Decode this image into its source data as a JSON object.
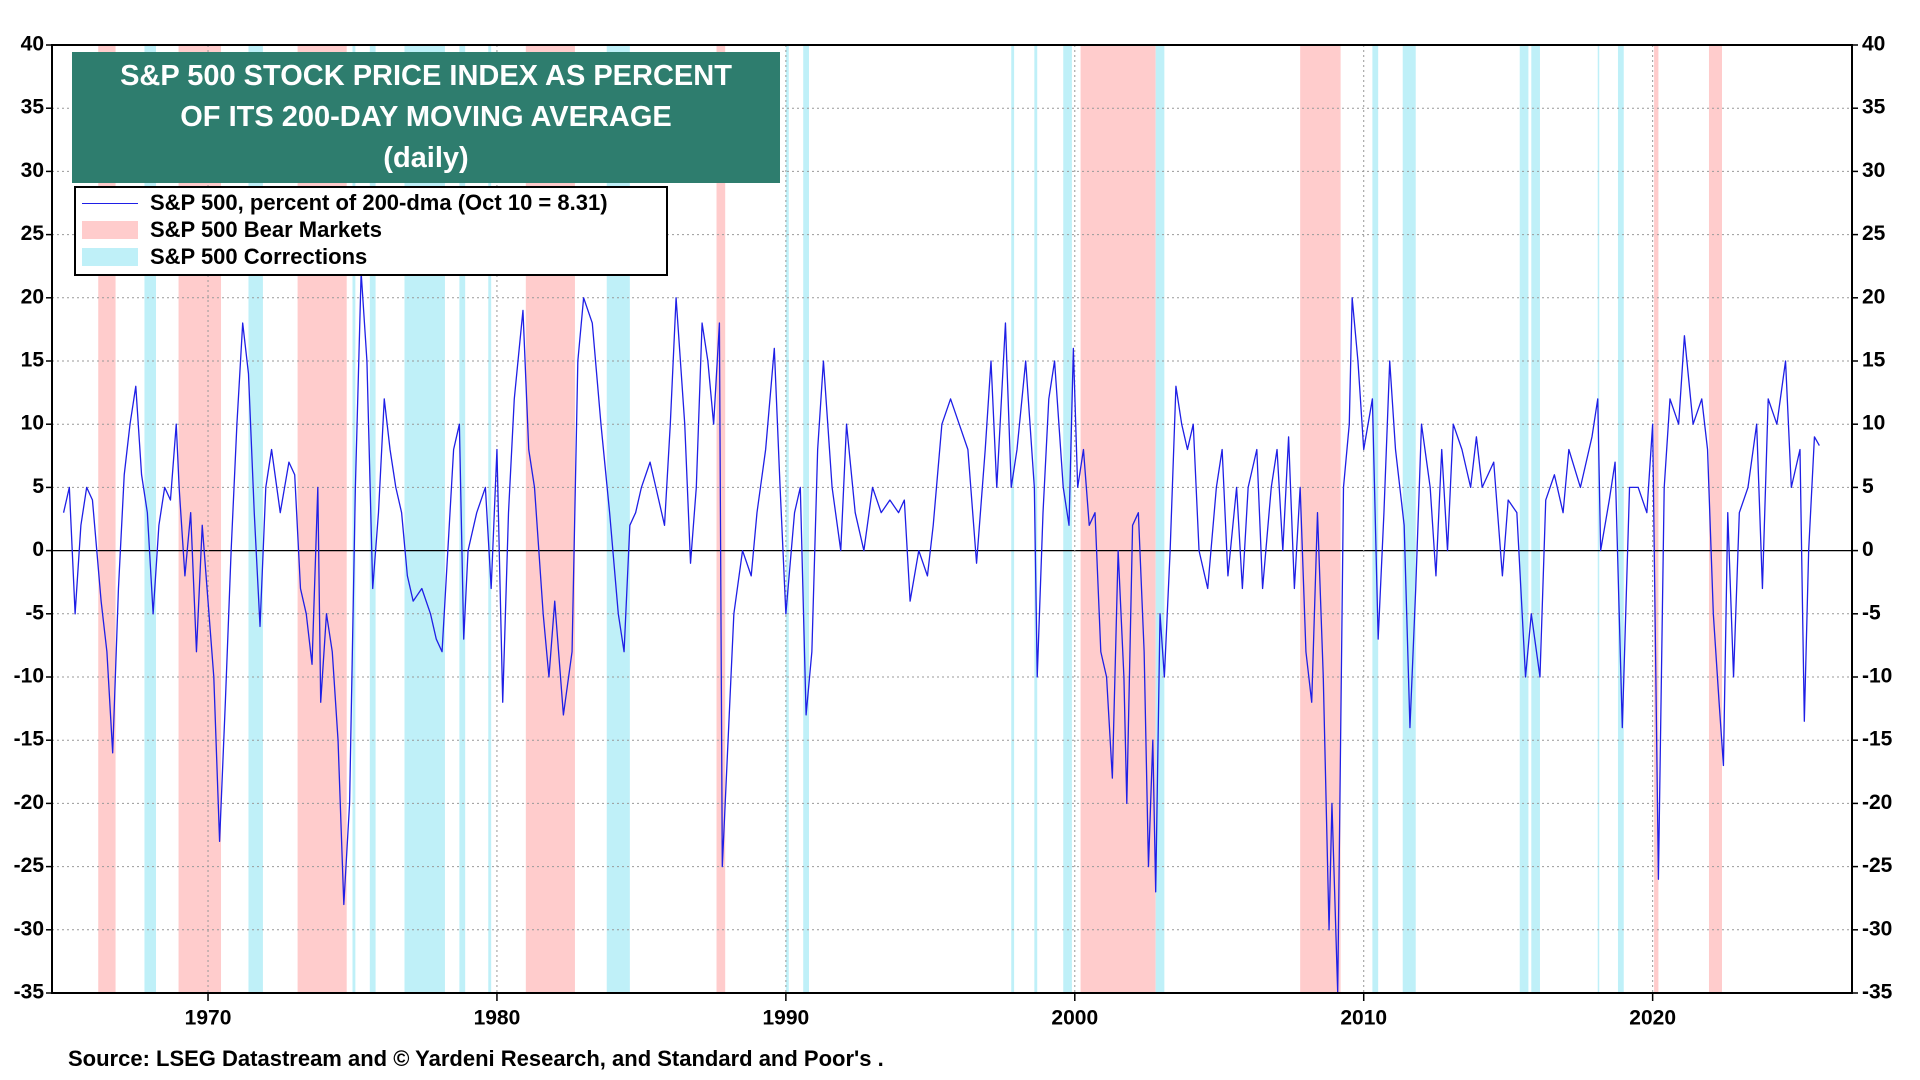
{
  "chart_data": {
    "type": "line",
    "title": "S&P 500 STOCK PRICE INDEX AS PERCENT OF ITS 200-DAY MOVING AVERAGE",
    "subtitle": "(daily)",
    "source": "Source: LSEG Datastream and © Yardeni Research, and Standard and Poor's .",
    "xlim": [
      1964.6,
      2026.9
    ],
    "xticks": [
      1970,
      1980,
      1990,
      2000,
      2010,
      2020
    ],
    "ylim": [
      -35,
      40
    ],
    "yticks": [
      -35,
      -30,
      -25,
      -20,
      -15,
      -10,
      -5,
      0,
      5,
      10,
      15,
      20,
      25,
      30,
      35,
      40
    ],
    "y2lim": [
      -35,
      40
    ],
    "y2ticks": [
      -35,
      -30,
      -25,
      -20,
      -15,
      -10,
      -5,
      0,
      5,
      10,
      15,
      20,
      25,
      30,
      35,
      40
    ],
    "grid": true,
    "legend": "top-left",
    "bands": [
      {
        "name": "S&P 500 Bear Markets",
        "color": "#ffcccc",
        "ranges": [
          [
            1966.2,
            1966.8
          ],
          [
            1968.98,
            1970.45
          ],
          [
            1973.1,
            1974.8
          ],
          [
            1981.0,
            1982.7
          ],
          [
            1987.6,
            1987.9
          ],
          [
            2000.2,
            2002.8
          ],
          [
            2007.8,
            2009.2
          ],
          [
            2020.05,
            2020.2
          ],
          [
            2021.95,
            2022.4
          ]
        ]
      },
      {
        "name": "S&P 500 Corrections",
        "color": "#bff0f8",
        "ranges": [
          [
            1967.8,
            1968.2
          ],
          [
            1971.4,
            1971.9
          ],
          [
            1975.0,
            1975.1
          ],
          [
            1975.6,
            1975.8
          ],
          [
            1976.8,
            1978.2
          ],
          [
            1978.7,
            1978.9
          ],
          [
            1979.7,
            1979.8
          ],
          [
            1983.8,
            1984.6
          ],
          [
            1990.0,
            1990.1
          ],
          [
            1990.6,
            1990.8
          ],
          [
            1997.8,
            1997.9
          ],
          [
            1998.6,
            1998.7
          ],
          [
            1999.6,
            1999.9
          ],
          [
            2002.8,
            2003.1
          ],
          [
            2010.3,
            2010.5
          ],
          [
            2011.35,
            2011.8
          ],
          [
            2015.4,
            2015.7
          ],
          [
            2015.8,
            2016.1
          ],
          [
            2018.1,
            2018.15
          ],
          [
            2018.8,
            2019.0
          ]
        ]
      }
    ],
    "x": [
      1965.0,
      1965.2,
      1965.4,
      1965.6,
      1965.8,
      1966.0,
      1966.3,
      1966.5,
      1966.7,
      1966.9,
      1967.1,
      1967.3,
      1967.5,
      1967.7,
      1967.9,
      1968.1,
      1968.3,
      1968.5,
      1968.7,
      1968.9,
      1969.0,
      1969.2,
      1969.4,
      1969.6,
      1969.8,
      1970.0,
      1970.2,
      1970.4,
      1970.6,
      1970.8,
      1971.0,
      1971.2,
      1971.4,
      1971.6,
      1971.8,
      1972.0,
      1972.2,
      1972.5,
      1972.8,
      1973.0,
      1973.2,
      1973.4,
      1973.6,
      1973.8,
      1973.9,
      1974.1,
      1974.3,
      1974.5,
      1974.7,
      1974.9,
      1975.1,
      1975.3,
      1975.5,
      1975.7,
      1975.9,
      1976.1,
      1976.3,
      1976.5,
      1976.7,
      1976.9,
      1977.1,
      1977.4,
      1977.7,
      1977.9,
      1978.1,
      1978.3,
      1978.5,
      1978.7,
      1978.85,
      1979.0,
      1979.3,
      1979.6,
      1979.8,
      1980.0,
      1980.2,
      1980.4,
      1980.6,
      1980.9,
      1981.1,
      1981.3,
      1981.6,
      1981.8,
      1982.0,
      1982.3,
      1982.6,
      1982.8,
      1983.0,
      1983.3,
      1983.6,
      1983.9,
      1984.2,
      1984.4,
      1984.6,
      1984.8,
      1985.0,
      1985.3,
      1985.6,
      1985.8,
      1986.0,
      1986.2,
      1986.5,
      1986.7,
      1986.9,
      1987.1,
      1987.3,
      1987.5,
      1987.7,
      1987.8,
      1988.0,
      1988.2,
      1988.5,
      1988.8,
      1989.0,
      1989.3,
      1989.6,
      1989.8,
      1990.0,
      1990.3,
      1990.5,
      1990.7,
      1990.9,
      1991.1,
      1991.3,
      1991.6,
      1991.9,
      1992.1,
      1992.4,
      1992.7,
      1993.0,
      1993.3,
      1993.6,
      1993.9,
      1994.1,
      1994.3,
      1994.6,
      1994.9,
      1995.1,
      1995.4,
      1995.7,
      1996.0,
      1996.3,
      1996.6,
      1996.9,
      1997.1,
      1997.3,
      1997.6,
      1997.8,
      1998.0,
      1998.3,
      1998.6,
      1998.7,
      1998.9,
      1999.1,
      1999.3,
      1999.6,
      1999.8,
      1999.95,
      2000.1,
      2000.3,
      2000.5,
      2000.7,
      2000.9,
      2001.1,
      2001.3,
      2001.5,
      2001.7,
      2001.8,
      2002.0,
      2002.2,
      2002.4,
      2002.55,
      2002.7,
      2002.8,
      2002.95,
      2003.1,
      2003.3,
      2003.5,
      2003.7,
      2003.9,
      2004.1,
      2004.3,
      2004.6,
      2004.9,
      2005.1,
      2005.3,
      2005.6,
      2005.8,
      2006.0,
      2006.3,
      2006.5,
      2006.8,
      2007.0,
      2007.2,
      2007.4,
      2007.6,
      2007.8,
      2008.0,
      2008.2,
      2008.4,
      2008.6,
      2008.8,
      2008.9,
      2009.1,
      2009.3,
      2009.5,
      2009.6,
      2009.8,
      2010.0,
      2010.3,
      2010.5,
      2010.7,
      2010.9,
      2011.1,
      2011.4,
      2011.6,
      2011.8,
      2012.0,
      2012.3,
      2012.5,
      2012.7,
      2012.9,
      2013.1,
      2013.4,
      2013.7,
      2013.9,
      2014.1,
      2014.5,
      2014.8,
      2015.0,
      2015.3,
      2015.6,
      2015.8,
      2016.1,
      2016.3,
      2016.6,
      2016.9,
      2017.1,
      2017.5,
      2017.9,
      2018.1,
      2018.2,
      2018.5,
      2018.7,
      2018.95,
      2019.2,
      2019.5,
      2019.8,
      2020.0,
      2020.2,
      2020.4,
      2020.6,
      2020.9,
      2021.1,
      2021.4,
      2021.7,
      2021.9,
      2022.1,
      2022.3,
      2022.45,
      2022.6,
      2022.8,
      2023.0,
      2023.3,
      2023.6,
      2023.8,
      2024.0,
      2024.3,
      2024.6,
      2024.8,
      2025.1,
      2025.25,
      2025.4,
      2025.6,
      2025.77
    ],
    "series": [
      {
        "name": "S&P 500, percent of 200-dma (Oct 10 = 8.31)",
        "color": "#1f1fe6",
        "values": [
          3,
          5,
          -5,
          2,
          5,
          4,
          -4,
          -8,
          -16,
          -3,
          6,
          10,
          13,
          6,
          3,
          -5,
          2,
          5,
          4,
          10,
          5,
          -2,
          3,
          -8,
          2,
          -4,
          -10,
          -23,
          -12,
          0,
          10,
          18,
          14,
          3,
          -6,
          5,
          8,
          3,
          7,
          6,
          -3,
          -5,
          -9,
          5,
          -12,
          -5,
          -8,
          -15,
          -28,
          -20,
          5,
          22,
          15,
          -3,
          3,
          12,
          8,
          5,
          3,
          -2,
          -4,
          -3,
          -5,
          -7,
          -8,
          0,
          8,
          10,
          -7,
          0,
          3,
          5,
          -3,
          8,
          -12,
          3,
          12,
          19,
          8,
          5,
          -5,
          -10,
          -4,
          -13,
          -8,
          15,
          20,
          18,
          10,
          3,
          -5,
          -8,
          2,
          3,
          5,
          7,
          4,
          2,
          10,
          20,
          10,
          -1,
          5,
          18,
          15,
          10,
          18,
          -25,
          -15,
          -5,
          0,
          -2,
          3,
          8,
          16,
          5,
          -5,
          3,
          5,
          -13,
          -8,
          8,
          15,
          5,
          0,
          10,
          3,
          0,
          5,
          3,
          4,
          3,
          4,
          -4,
          0,
          -2,
          2,
          10,
          12,
          10,
          8,
          -1,
          8,
          15,
          5,
          18,
          5,
          8,
          15,
          5,
          -10,
          3,
          12,
          15,
          5,
          2,
          16,
          5,
          8,
          2,
          3,
          -8,
          -10,
          -18,
          0,
          -10,
          -20,
          2,
          3,
          -8,
          -25,
          -15,
          -27,
          -5,
          -10,
          0,
          13,
          10,
          8,
          10,
          0,
          -3,
          5,
          8,
          -2,
          5,
          -3,
          5,
          8,
          -3,
          5,
          8,
          0,
          9,
          -3,
          5,
          -8,
          -12,
          3,
          -10,
          -30,
          -20,
          -35,
          5,
          10,
          20,
          15,
          8,
          12,
          -7,
          3,
          15,
          8,
          2,
          -14,
          -3,
          10,
          5,
          -2,
          8,
          0,
          10,
          8,
          5,
          9,
          5,
          7,
          -2,
          4,
          3,
          -10,
          -5,
          -10,
          4,
          6,
          3,
          8,
          5,
          9,
          12,
          0,
          4,
          7,
          -14,
          5,
          5,
          3,
          10,
          -26,
          5,
          12,
          10,
          17,
          10,
          12,
          8,
          -5,
          -12,
          -17,
          3,
          -10,
          3,
          5,
          10,
          -3,
          12,
          10,
          15,
          5,
          8,
          -13.5,
          0,
          9,
          8.31
        ]
      }
    ]
  }
}
